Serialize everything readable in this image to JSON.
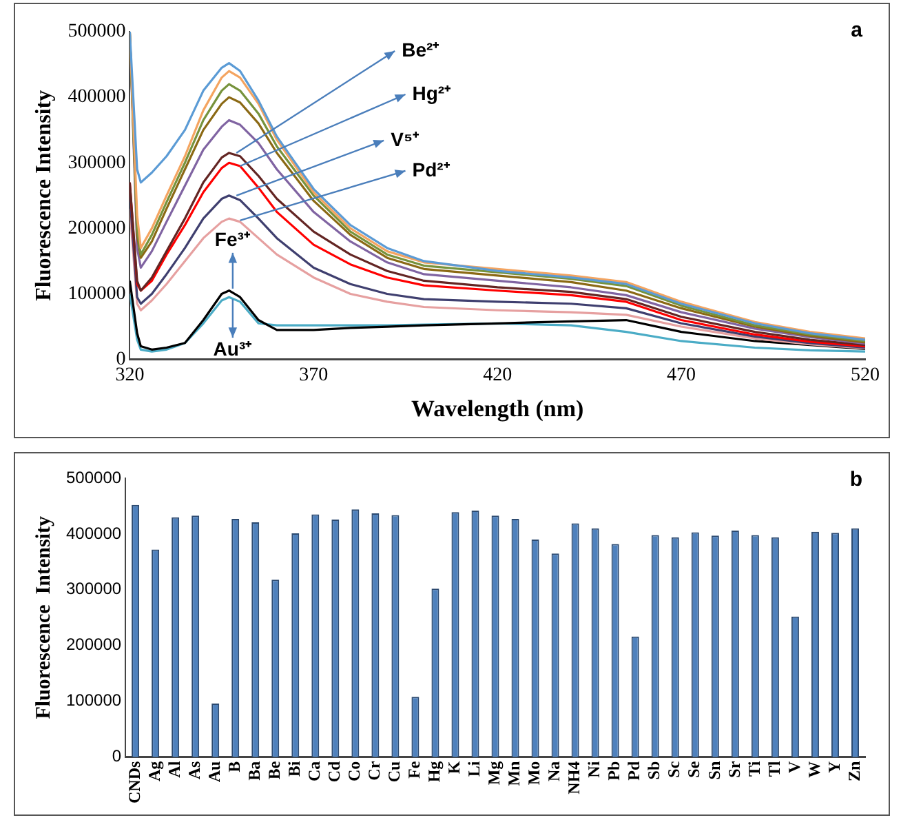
{
  "chart_data": [
    {
      "type": "line",
      "xlabel": "Wavelength (nm)",
      "ylabel": "Fluorescence Intensity",
      "x": [
        320,
        322,
        323,
        326,
        330,
        335,
        340,
        345,
        347,
        350,
        355,
        360,
        370,
        380,
        390,
        400,
        420,
        440,
        455,
        470,
        490,
        505,
        520
      ],
      "xlim": [
        320,
        520
      ],
      "xticks": [
        320,
        370,
        420,
        470,
        520
      ],
      "ylim": [
        0,
        500000
      ],
      "yticks": [
        0,
        100000,
        200000,
        300000,
        400000,
        500000
      ],
      "grid": false,
      "legend": false,
      "series": [
        {
          "color": "#5b9bd5",
          "values": [
            500000,
            290000,
            270000,
            285000,
            310000,
            350000,
            410000,
            445000,
            452000,
            440000,
            395000,
            340000,
            260000,
            205000,
            170000,
            150000,
            135000,
            125000,
            115000,
            85000,
            55000,
            40000,
            30000
          ]
        },
        {
          "color": "#f4a460",
          "values": [
            500000,
            220000,
            170000,
            200000,
            250000,
            310000,
            380000,
            430000,
            440000,
            430000,
            390000,
            335000,
            255000,
            200000,
            165000,
            148000,
            138000,
            128000,
            118000,
            88000,
            57000,
            42000,
            32000
          ]
        },
        {
          "color": "#77933c",
          "values": [
            500000,
            200000,
            160000,
            190000,
            240000,
            300000,
            365000,
            410000,
            420000,
            410000,
            375000,
            325000,
            250000,
            195000,
            160000,
            143000,
            133000,
            123000,
            112000,
            82000,
            52000,
            38000,
            28000
          ]
        },
        {
          "color": "#8b6914",
          "values": [
            500000,
            190000,
            155000,
            180000,
            230000,
            290000,
            350000,
            390000,
            400000,
            392000,
            360000,
            315000,
            242000,
            190000,
            155000,
            138000,
            128000,
            118000,
            105000,
            78000,
            50000,
            36000,
            26000
          ]
        },
        {
          "color": "#8064a2",
          "values": [
            500000,
            170000,
            140000,
            165000,
            210000,
            265000,
            320000,
            355000,
            365000,
            358000,
            330000,
            290000,
            225000,
            180000,
            148000,
            130000,
            120000,
            110000,
            98000,
            72000,
            47000,
            34000,
            24000
          ]
        },
        {
          "color": "#632523",
          "values": [
            270000,
            120000,
            105000,
            125000,
            165000,
            215000,
            270000,
            308000,
            315000,
            310000,
            280000,
            245000,
            195000,
            160000,
            135000,
            120000,
            110000,
            103000,
            92000,
            65000,
            42000,
            30000,
            22000
          ]
        },
        {
          "color": "#ff0000",
          "values": [
            270000,
            115000,
            105000,
            120000,
            160000,
            205000,
            255000,
            292000,
            300000,
            295000,
            262000,
            225000,
            175000,
            145000,
            125000,
            113000,
            105000,
            98000,
            88000,
            60000,
            38000,
            27000,
            20000
          ]
        },
        {
          "color": "#3f3f6f",
          "values": [
            250000,
            95000,
            85000,
            100000,
            130000,
            170000,
            215000,
            245000,
            250000,
            243000,
            215000,
            185000,
            140000,
            115000,
            100000,
            92000,
            88000,
            85000,
            78000,
            55000,
            35000,
            25000,
            18000
          ]
        },
        {
          "color": "#e6a0a0",
          "values": [
            230000,
            85000,
            75000,
            90000,
            115000,
            150000,
            185000,
            210000,
            215000,
            210000,
            185000,
            160000,
            125000,
            100000,
            88000,
            80000,
            75000,
            72000,
            68000,
            50000,
            32000,
            23000,
            17000
          ]
        },
        {
          "color": "#000000",
          "values": [
            120000,
            40000,
            20000,
            15000,
            18000,
            25000,
            60000,
            100000,
            105000,
            95000,
            60000,
            45000,
            45000,
            48000,
            50000,
            52000,
            55000,
            58000,
            60000,
            42000,
            28000,
            22000,
            16000
          ]
        },
        {
          "color": "#4bacc6",
          "values": [
            100000,
            30000,
            15000,
            12000,
            15000,
            25000,
            55000,
            90000,
            95000,
            88000,
            55000,
            52000,
            52000,
            52000,
            52000,
            53000,
            55000,
            52000,
            42000,
            28000,
            18000,
            14000,
            12000
          ]
        }
      ],
      "annotations": [
        "a",
        {
          "text": "Be²⁺",
          "x": 349,
          "y": 315000
        },
        {
          "text": "Hg²⁺",
          "x": 350,
          "y": 295000
        },
        {
          "text": "V⁵⁺",
          "x": 349,
          "y": 250000
        },
        {
          "text": "Pd²⁺",
          "x": 350,
          "y": 212000
        },
        {
          "text": "Fe³⁺",
          "x": 348,
          "y": 108000
        },
        {
          "text": "Au³⁺",
          "x": 348,
          "y": 92000
        }
      ]
    },
    {
      "type": "bar",
      "ylabel": "Fluorescence  Intensity",
      "color": "#4f81bd",
      "categories": [
        "CNDs",
        "Ag",
        "Al",
        "As",
        "Au",
        "B",
        "Ba",
        "Be",
        "Bi",
        "Ca",
        "Cd",
        "Co",
        "Cr",
        "Cu",
        "Fe",
        "Hg",
        "K",
        "Li",
        "Mg",
        "Mn",
        "Mo",
        "Na",
        "NH4",
        "Ni",
        "Pb",
        "Pd",
        "Sb",
        "Sc",
        "Se",
        "Sn",
        "Sr",
        "Ti",
        "Tl",
        "V",
        "W",
        "Y",
        "Zn"
      ],
      "values": [
        452000,
        372000,
        430000,
        433000,
        96000,
        427000,
        421000,
        318000,
        401000,
        435000,
        426000,
        444000,
        437000,
        434000,
        108000,
        302000,
        439000,
        442000,
        433000,
        427000,
        390000,
        365000,
        419000,
        410000,
        382000,
        216000,
        398000,
        394000,
        403000,
        397000,
        406000,
        398000,
        394000,
        252000,
        404000,
        402000,
        410000
      ],
      "ylim": [
        0,
        500000
      ],
      "yticks": [
        0,
        100000,
        200000,
        300000,
        400000,
        500000
      ],
      "grid": false,
      "legend": false,
      "annotations": [
        "b"
      ]
    }
  ]
}
